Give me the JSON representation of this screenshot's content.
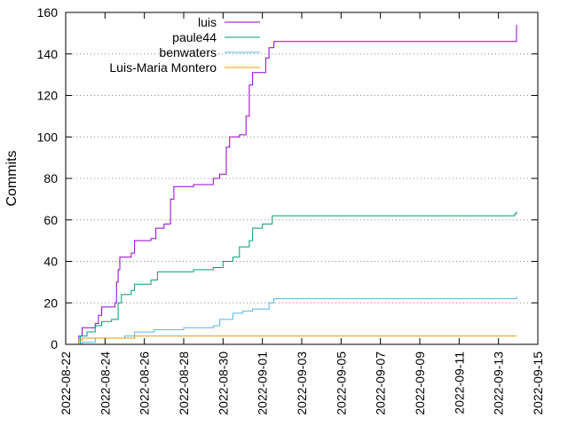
{
  "chart_data": {
    "type": "line",
    "title": "",
    "xlabel": "",
    "ylabel": "Commits",
    "x_type": "date",
    "xlim": [
      "2022-08-22",
      "2022-09-15"
    ],
    "ylim": [
      0,
      160
    ],
    "x_ticks": [
      "2022-08-22",
      "2022-08-24",
      "2022-08-26",
      "2022-08-28",
      "2022-08-30",
      "2022-09-01",
      "2022-09-03",
      "2022-09-05",
      "2022-09-07",
      "2022-09-09",
      "2022-09-11",
      "2022-09-13",
      "2022-09-15"
    ],
    "y_ticks": [
      0,
      20,
      40,
      60,
      80,
      100,
      120,
      140,
      160
    ],
    "grid": "horizontal dotted",
    "legend_position": "top-left",
    "series": [
      {
        "name": "luis",
        "color": "#9400d3",
        "points": [
          [
            "2022-08-22T12:00",
            0
          ],
          [
            "2022-08-22T16:00",
            4
          ],
          [
            "2022-08-22T20:00",
            8
          ],
          [
            "2022-08-23T12:00",
            10
          ],
          [
            "2022-08-23T16:00",
            14
          ],
          [
            "2022-08-23T20:00",
            18
          ],
          [
            "2022-08-24T12:00",
            20
          ],
          [
            "2022-08-24T14:00",
            30
          ],
          [
            "2022-08-24T16:00",
            36
          ],
          [
            "2022-08-24T18:00",
            42
          ],
          [
            "2022-08-25T08:00",
            44
          ],
          [
            "2022-08-25T12:00",
            50
          ],
          [
            "2022-08-26T08:00",
            51
          ],
          [
            "2022-08-26T14:00",
            56
          ],
          [
            "2022-08-27T00:00",
            58
          ],
          [
            "2022-08-27T08:00",
            70
          ],
          [
            "2022-08-27T12:00",
            76
          ],
          [
            "2022-08-28T12:00",
            77
          ],
          [
            "2022-08-29T12:00",
            80
          ],
          [
            "2022-08-29T20:00",
            82
          ],
          [
            "2022-08-30T04:00",
            95
          ],
          [
            "2022-08-30T08:00",
            100
          ],
          [
            "2022-08-30T20:00",
            101
          ],
          [
            "2022-08-31T04:00",
            110
          ],
          [
            "2022-08-31T08:00",
            125
          ],
          [
            "2022-08-31T12:00",
            131
          ],
          [
            "2022-09-01T00:00",
            131
          ],
          [
            "2022-09-01T04:00",
            138
          ],
          [
            "2022-09-01T08:00",
            143
          ],
          [
            "2022-09-01T14:00",
            146
          ],
          [
            "2022-09-13T20:00",
            146
          ],
          [
            "2022-09-13T22:00",
            154
          ]
        ]
      },
      {
        "name": "paule44",
        "color": "#009e73",
        "points": [
          [
            "2022-08-22T12:00",
            0
          ],
          [
            "2022-08-22T18:00",
            4
          ],
          [
            "2022-08-23T02:00",
            6
          ],
          [
            "2022-08-23T12:00",
            9
          ],
          [
            "2022-08-23T20:00",
            11
          ],
          [
            "2022-08-24T08:00",
            12
          ],
          [
            "2022-08-24T16:00",
            20
          ],
          [
            "2022-08-24T20:00",
            24
          ],
          [
            "2022-08-25T08:00",
            26
          ],
          [
            "2022-08-25T12:00",
            29
          ],
          [
            "2022-08-26T08:00",
            31
          ],
          [
            "2022-08-26T16:00",
            35
          ],
          [
            "2022-08-27T20:00",
            35
          ],
          [
            "2022-08-28T12:00",
            36
          ],
          [
            "2022-08-29T12:00",
            37
          ],
          [
            "2022-08-30T00:00",
            40
          ],
          [
            "2022-08-30T12:00",
            42
          ],
          [
            "2022-08-30T20:00",
            47
          ],
          [
            "2022-08-31T08:00",
            50
          ],
          [
            "2022-08-31T12:00",
            56
          ],
          [
            "2022-09-01T00:00",
            58
          ],
          [
            "2022-09-01T12:00",
            62
          ],
          [
            "2022-09-05T00:00",
            62
          ],
          [
            "2022-09-13T20:00",
            63
          ],
          [
            "2022-09-13T22:00",
            64
          ]
        ]
      },
      {
        "name": "benwaters",
        "color": "#56b4e9",
        "points": [
          [
            "2022-08-22T12:00",
            0
          ],
          [
            "2022-08-22T20:00",
            1
          ],
          [
            "2022-08-23T12:00",
            3
          ],
          [
            "2022-08-24T12:00",
            3
          ],
          [
            "2022-08-25T00:00",
            4
          ],
          [
            "2022-08-25T12:00",
            6
          ],
          [
            "2022-08-26T12:00",
            7
          ],
          [
            "2022-08-27T08:00",
            7
          ],
          [
            "2022-08-28T00:00",
            8
          ],
          [
            "2022-08-29T12:00",
            9
          ],
          [
            "2022-08-29T20:00",
            12
          ],
          [
            "2022-08-30T12:00",
            15
          ],
          [
            "2022-08-31T00:00",
            16
          ],
          [
            "2022-08-31T12:00",
            17
          ],
          [
            "2022-09-01T08:00",
            20
          ],
          [
            "2022-09-01T14:00",
            22
          ],
          [
            "2022-09-13T20:00",
            22
          ],
          [
            "2022-09-13T22:00",
            23
          ]
        ]
      },
      {
        "name": "Luis-Maria Montero",
        "color": "#e69f00",
        "points": [
          [
            "2022-08-22T12:00",
            0
          ],
          [
            "2022-08-22T16:00",
            2
          ],
          [
            "2022-08-22T20:00",
            3
          ],
          [
            "2022-08-23T00:00",
            3
          ],
          [
            "2022-08-24T12:00",
            3
          ],
          [
            "2022-08-25T12:00",
            4
          ],
          [
            "2022-09-13T22:00",
            4
          ]
        ]
      }
    ]
  }
}
